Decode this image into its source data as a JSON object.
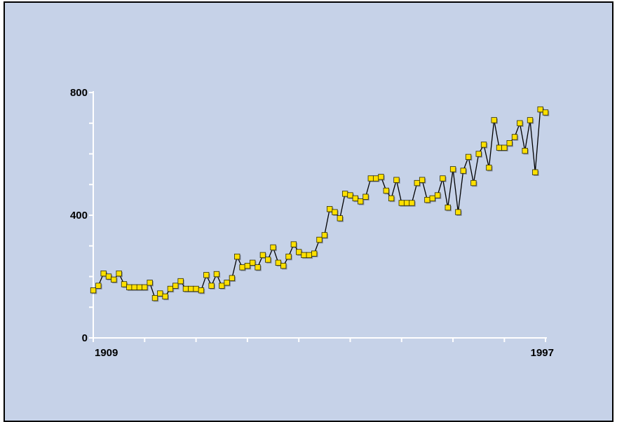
{
  "colors": {
    "background": "#c6d2e8",
    "axis": "#ffffff",
    "line": "#000000",
    "marker_fill": "#ffe000",
    "marker_stroke": "#2a2a00"
  },
  "chart_data": {
    "type": "line",
    "title": "",
    "xlabel": "",
    "ylabel": "",
    "xlim": [
      1909,
      1997
    ],
    "ylim": [
      0,
      800
    ],
    "grid": false,
    "x_tick_labels": [
      "1909",
      "1997"
    ],
    "y_tick_labels": [
      "0",
      "400",
      "800"
    ],
    "marker": "square",
    "series": [
      {
        "x": [
          1909,
          1910,
          1911,
          1912,
          1913,
          1914,
          1915,
          1916,
          1917,
          1918,
          1919,
          1920,
          1921,
          1922,
          1923,
          1924,
          1925,
          1926,
          1927,
          1928,
          1929,
          1930,
          1931,
          1932,
          1933,
          1934,
          1935,
          1936,
          1937,
          1938,
          1939,
          1940,
          1941,
          1942,
          1943,
          1944,
          1945,
          1946,
          1947,
          1948,
          1949,
          1950,
          1951,
          1952,
          1953,
          1954,
          1955,
          1956,
          1957,
          1958,
          1959,
          1960,
          1961,
          1962,
          1963,
          1964,
          1965,
          1966,
          1967,
          1968,
          1969,
          1970,
          1971,
          1972,
          1973,
          1974,
          1975,
          1976,
          1977,
          1978,
          1979,
          1980,
          1981,
          1982,
          1983,
          1984,
          1985,
          1986,
          1987,
          1988,
          1989,
          1990,
          1991,
          1992,
          1993,
          1994,
          1995,
          1996,
          1997
        ],
        "values": [
          155,
          170,
          210,
          200,
          190,
          210,
          175,
          165,
          165,
          165,
          165,
          180,
          130,
          145,
          135,
          160,
          170,
          185,
          160,
          160,
          160,
          155,
          205,
          170,
          208,
          170,
          180,
          195,
          265,
          230,
          235,
          245,
          230,
          270,
          255,
          295,
          245,
          235,
          265,
          305,
          280,
          270,
          270,
          275,
          320,
          335,
          420,
          410,
          390,
          470,
          465,
          455,
          445,
          460,
          520,
          520,
          525,
          480,
          455,
          515,
          440,
          440,
          440,
          505,
          515,
          450,
          455,
          465,
          520,
          425,
          550,
          410,
          545,
          590,
          505,
          600,
          630,
          555,
          710,
          620,
          620,
          635,
          655,
          700,
          610,
          710,
          540,
          745,
          735
        ]
      }
    ]
  }
}
